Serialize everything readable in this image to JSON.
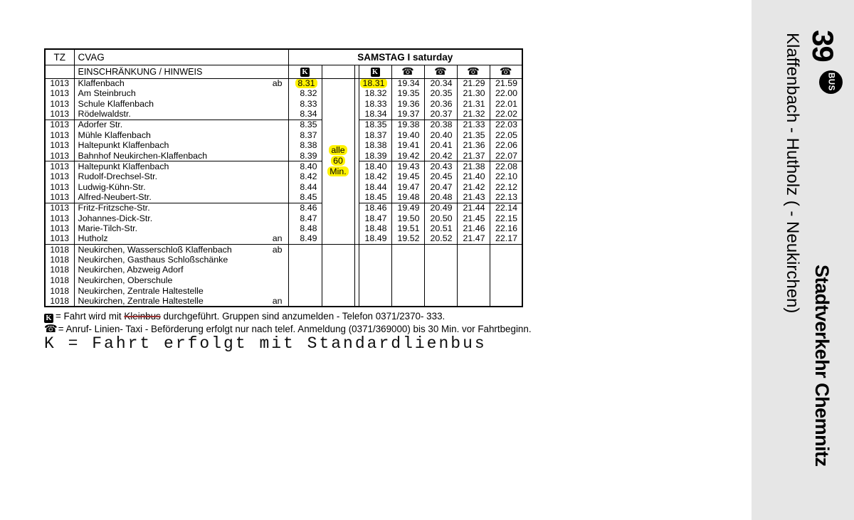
{
  "sidebar": {
    "bg_color": "#e6e6e6",
    "line_number": "39",
    "bus_badge_label": "BUS",
    "route_title": "Klaffenbach - Hutholz ( - Neukirchen)",
    "operator": "Stadtverkehr Chemnitz"
  },
  "timetable": {
    "corner": {
      "tz_label": "TZ",
      "agency_label": "CVAG",
      "restriction_label": "EINSCHRÄNKUNG / HINWEIS"
    },
    "day_header": "SAMSTAG I saturday",
    "column_symbols": [
      "kleinbus",
      "blank",
      "kleinbus",
      "phone",
      "phone",
      "phone",
      "phone"
    ],
    "kleinbus_symbol_char": "K",
    "phone_symbol_char": "☎",
    "frequency_note": [
      "alle",
      "60",
      "Min."
    ],
    "highlight_color": "#fff200",
    "rows": [
      {
        "tz": "1013",
        "stop": "Klaffenbach",
        "marker": "ab",
        "times": [
          "8.31",
          "18.31",
          "19.34",
          "20.34",
          "21.29",
          "21.59"
        ],
        "hl": [
          0,
          1
        ],
        "gs": true
      },
      {
        "tz": "1013",
        "stop": "Am Steinbruch",
        "marker": "",
        "times": [
          "8.32",
          "18.32",
          "19.35",
          "20.35",
          "21.30",
          "22.00"
        ]
      },
      {
        "tz": "1013",
        "stop": "Schule Klaffenbach",
        "marker": "",
        "times": [
          "8.33",
          "18.33",
          "19.36",
          "20.36",
          "21.31",
          "22.01"
        ]
      },
      {
        "tz": "1013",
        "stop": "Rödelwaldstr.",
        "marker": "",
        "times": [
          "8.34",
          "18.34",
          "19.37",
          "20.37",
          "21.32",
          "22.02"
        ]
      },
      {
        "tz": "1013",
        "stop": "Adorfer Str.",
        "marker": "",
        "times": [
          "8.35",
          "18.35",
          "19.38",
          "20.38",
          "21.33",
          "22.03"
        ],
        "gs": true
      },
      {
        "tz": "1013",
        "stop": "Mühle Klaffenbach",
        "marker": "",
        "times": [
          "8.37",
          "18.37",
          "19.40",
          "20.40",
          "21.35",
          "22.05"
        ]
      },
      {
        "tz": "1013",
        "stop": "Haltepunkt Klaffenbach",
        "marker": "",
        "times": [
          "8.38",
          "18.38",
          "19.41",
          "20.41",
          "21.36",
          "22.06"
        ]
      },
      {
        "tz": "1013",
        "stop": "Bahnhof Neukirchen-Klaffenbach",
        "marker": "",
        "times": [
          "8.39",
          "18.39",
          "19.42",
          "20.42",
          "21.37",
          "22.07"
        ]
      },
      {
        "tz": "1013",
        "stop": "Haltepunkt Klaffenbach",
        "marker": "",
        "times": [
          "8.40",
          "18.40",
          "19.43",
          "20.43",
          "21.38",
          "22.08"
        ],
        "gs": true
      },
      {
        "tz": "1013",
        "stop": "Rudolf-Drechsel-Str.",
        "marker": "",
        "times": [
          "8.42",
          "18.42",
          "19.45",
          "20.45",
          "21.40",
          "22.10"
        ]
      },
      {
        "tz": "1013",
        "stop": "Ludwig-Kühn-Str.",
        "marker": "",
        "times": [
          "8.44",
          "18.44",
          "19.47",
          "20.47",
          "21.42",
          "22.12"
        ]
      },
      {
        "tz": "1013",
        "stop": "Alfred-Neubert-Str.",
        "marker": "",
        "times": [
          "8.45",
          "18.45",
          "19.48",
          "20.48",
          "21.43",
          "22.13"
        ]
      },
      {
        "tz": "1013",
        "stop": "Fritz-Fritzsche-Str.",
        "marker": "",
        "times": [
          "8.46",
          "18.46",
          "19.49",
          "20.49",
          "21.44",
          "22.14"
        ],
        "gs": true
      },
      {
        "tz": "1013",
        "stop": "Johannes-Dick-Str.",
        "marker": "",
        "times": [
          "8.47",
          "18.47",
          "19.50",
          "20.50",
          "21.45",
          "22.15"
        ]
      },
      {
        "tz": "1013",
        "stop": "Marie-Tilch-Str.",
        "marker": "",
        "times": [
          "8.48",
          "18.48",
          "19.51",
          "20.51",
          "21.46",
          "22.16"
        ]
      },
      {
        "tz": "1013",
        "stop": "Hutholz",
        "marker": "an",
        "times": [
          "8.49",
          "18.49",
          "19.52",
          "20.52",
          "21.47",
          "22.17"
        ]
      },
      {
        "tz": "1018",
        "stop": "Neukirchen, Wasserschloß Klaffenbach",
        "marker": "ab",
        "times": [
          "",
          "",
          "",
          "",
          "",
          ""
        ],
        "gs": true
      },
      {
        "tz": "1018",
        "stop": "Neukirchen, Gasthaus Schloßschänke",
        "marker": "",
        "times": [
          "",
          "",
          "",
          "",
          "",
          ""
        ]
      },
      {
        "tz": "1018",
        "stop": "Neukirchen, Abzweig Adorf",
        "marker": "",
        "times": [
          "",
          "",
          "",
          "",
          "",
          ""
        ]
      },
      {
        "tz": "1018",
        "stop": "Neukirchen, Oberschule",
        "marker": "",
        "times": [
          "",
          "",
          "",
          "",
          "",
          ""
        ]
      },
      {
        "tz": "1018",
        "stop": "Neukirchen, Zentrale Haltestelle",
        "marker": "",
        "times": [
          "",
          "",
          "",
          "",
          "",
          ""
        ]
      },
      {
        "tz": "1018",
        "stop": "Neukirchen, Zentrale Haltestelle",
        "marker": "an",
        "times": [
          "",
          "",
          "",
          "",
          "",
          ""
        ]
      }
    ]
  },
  "legend": [
    {
      "symbol": "kleinbus",
      "prefix": "=  Fahrt wird mit ",
      "struck": "Kleinbus",
      "suffix": " durchgeführt. Gruppen sind anzumelden -  Telefon 0371/2370- 333."
    },
    {
      "symbol": "phone",
      "prefix": "=  Anruf- Linien- Taxi -  Beförderung erfolgt nur nach telef. Anmeldung (0371/369000) bis 30 Min. vor Fahrtbeginn.",
      "struck": "",
      "suffix": ""
    }
  ],
  "annotation": "K = Fahrt erfolgt mit Standardlienbus"
}
